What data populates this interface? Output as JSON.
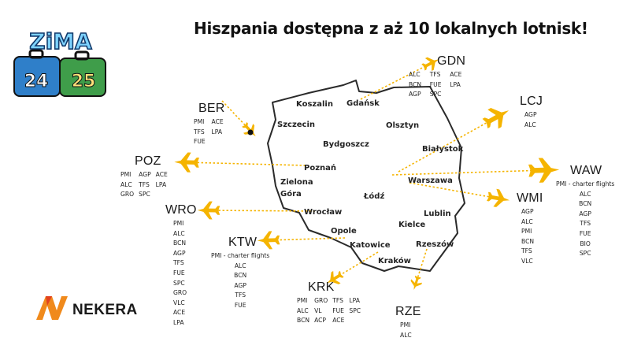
{
  "headline": "Hiszpania dostępna z aż 10 lokalnych lotnisk!",
  "promo": {
    "word": "ZiMA",
    "year_left": "24",
    "year_right": "25"
  },
  "brand": {
    "name": "NEKERA"
  },
  "colors": {
    "accent": "#F5B400",
    "map_fill": "#ffffff",
    "map_stroke": "#2a2a2a",
    "text": "#1a1a1a"
  },
  "cities": [
    "Koszalin",
    "Gdańsk",
    "Szczecin",
    "Olsztyn",
    "Bydgoszcz",
    "Białystok",
    "Poznań",
    "Zielona Góra",
    "Warszawa",
    "Łódź",
    "Wrocław",
    "Lublin",
    "Opole",
    "Kielce",
    "Katowice",
    "Rzeszów",
    "Kraków"
  ],
  "airports": [
    {
      "code": "GDN",
      "icon": "plane-icon",
      "cols": 3,
      "destinations": [
        "ALC",
        "TFS",
        "ACE",
        "BCN",
        "FUE",
        "LPA",
        "AGP",
        "SPC"
      ]
    },
    {
      "code": "LCJ",
      "icon": "plane-icon",
      "cols": 1,
      "destinations": [
        "AGP",
        "ALC"
      ]
    },
    {
      "code": "BER",
      "icon": "plane-icon",
      "cols": 2,
      "destinations": [
        "PMI",
        "ACE",
        "TFS",
        "LPA",
        "FUE"
      ]
    },
    {
      "code": "POZ",
      "icon": "plane-icon",
      "cols": 3,
      "destinations": [
        "PMI",
        "AGP",
        "ACE",
        "ALC",
        "TFS",
        "LPA",
        "GRO",
        "SPC"
      ]
    },
    {
      "code": "WAW",
      "icon": "plane-icon",
      "cols": 1,
      "destinations": [
        "PMI - charter flights",
        "ALC",
        "BCN",
        "AGP",
        "TFS",
        "FUE",
        "BIO",
        "SPC"
      ]
    },
    {
      "code": "WMI",
      "icon": "plane-icon",
      "cols": 1,
      "destinations": [
        "AGP",
        "ALC",
        "PMI",
        "BCN",
        "TFS",
        "VLC"
      ]
    },
    {
      "code": "WRO",
      "icon": "plane-icon",
      "cols": 1,
      "destinations": [
        "PMI",
        "ALC",
        "BCN",
        "AGP",
        "TFS",
        "FUE",
        "SPC",
        "GRO",
        "VLC",
        "ACE",
        "LPA"
      ]
    },
    {
      "code": "KTW",
      "icon": "plane-icon",
      "cols": 1,
      "destinations": [
        "PMI - charter flights",
        "ALC",
        "BCN",
        "AGP",
        "TFS",
        "FUE"
      ]
    },
    {
      "code": "KRK",
      "icon": "plane-icon",
      "cols": 4,
      "destinations": [
        "PMI",
        "GRO",
        "TFS",
        "LPA",
        "ALC",
        "VL",
        "FUE",
        "SPC",
        "BCN",
        "ACP",
        "ACE"
      ]
    },
    {
      "code": "RZE",
      "icon": "plane-icon",
      "cols": 1,
      "destinations": [
        "PMI",
        "ALC"
      ]
    }
  ]
}
